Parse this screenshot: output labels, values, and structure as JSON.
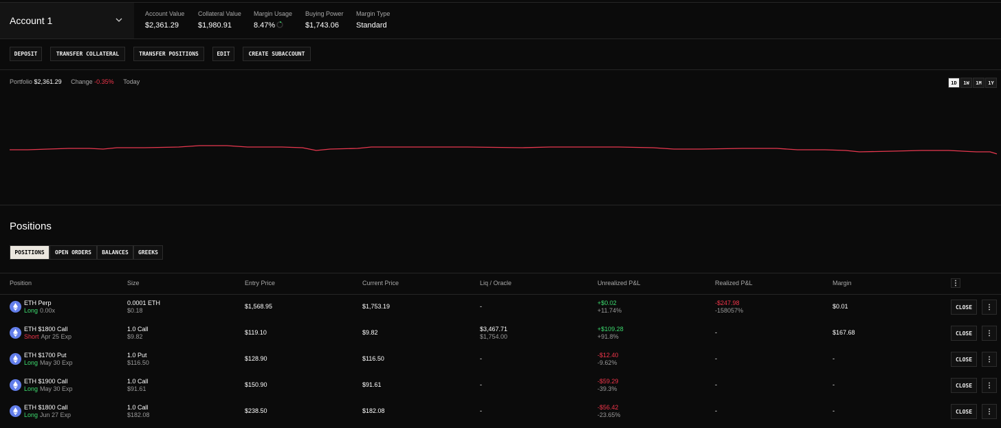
{
  "header": {
    "account": "Account 1",
    "stats": [
      {
        "label": "Account Value",
        "value": "$2,361.29"
      },
      {
        "label": "Collateral Value",
        "value": "$1,980.91"
      },
      {
        "label": "Margin Usage",
        "value": "8.47%"
      },
      {
        "label": "Buying Power",
        "value": "$1,743.06"
      },
      {
        "label": "Margin Type",
        "value": "Standard"
      }
    ]
  },
  "buttons": [
    "DEPOSIT",
    "TRANSFER COLLATERAL",
    "TRANSFER POSITIONS",
    "EDIT",
    "CREATE SUBACCOUNT"
  ],
  "portfolio": {
    "label": "Portfolio",
    "value": "$2,361.29",
    "change_label": "Change",
    "change_value": "-0.35%",
    "change_color": "#f0354a",
    "period": "Today",
    "timeframes": [
      "1D",
      "1W",
      "1M",
      "1Y"
    ]
  },
  "positions_title": "Positions",
  "tabs": [
    "POSITIONS",
    "OPEN ORDERS",
    "BALANCES",
    "GREEKS"
  ],
  "table": {
    "columns": [
      "Position",
      "Size",
      "Entry Price",
      "Current Price",
      "Liq / Oracle",
      "Unrealized P&L",
      "Realized P&L",
      "Margin"
    ],
    "action": "CLOSE",
    "rows": [
      {
        "position": "ETH Perp",
        "side": "Long",
        "side_color": "#3ddc6f",
        "detail": "0.00x",
        "size": "0.0001 ETH",
        "size_sub": "$0.18",
        "entry": "$1,568.95",
        "current": "$1,753.19",
        "liq": "-",
        "upnl": "+$0.02",
        "upnl_pct": "+11.74%",
        "rpnl": "-$247.98",
        "rpnl_pct": "-158057%",
        "margin": "$0.01"
      },
      {
        "position": "ETH $1800 Call",
        "side": "Short",
        "side_color": "#f0354a",
        "detail": "Apr 25 Exp",
        "size": "1.0 Call",
        "size_sub": "$9.82",
        "entry": "$119.10",
        "current": "$9.82",
        "liq": "$3,467.71",
        "liq_sub": "$1,754.00",
        "upnl": "+$109.28",
        "upnl_pct": "+91.8%",
        "rpnl": "-",
        "margin": "$167.68"
      },
      {
        "position": "ETH $1700 Put",
        "side": "Long",
        "side_color": "#3ddc6f",
        "detail": "May 30 Exp",
        "size": "1.0 Put",
        "size_sub": "$116.50",
        "entry": "$128.90",
        "current": "$116.50",
        "liq": "-",
        "upnl": "-$12.40",
        "upnl_pct": "-9.62%",
        "rpnl": "-",
        "margin": "-"
      },
      {
        "position": "ETH $1900 Call",
        "side": "Long",
        "side_color": "#3ddc6f",
        "detail": "May 30 Exp",
        "size": "1.0 Call",
        "size_sub": "$91.61",
        "entry": "$150.90",
        "current": "$91.61",
        "liq": "-",
        "upnl": "-$59.29",
        "upnl_pct": "-39.3%",
        "rpnl": "-",
        "margin": "-"
      },
      {
        "position": "ETH $1800 Call",
        "side": "Long",
        "side_color": "#3ddc6f",
        "detail": "Jun 27 Exp",
        "size": "1.0 Call",
        "size_sub": "$182.08",
        "entry": "$238.50",
        "current": "$182.08",
        "liq": "-",
        "upnl": "-$56.42",
        "upnl_pct": "-23.65%",
        "rpnl": "-",
        "margin": "-"
      }
    ]
  }
}
